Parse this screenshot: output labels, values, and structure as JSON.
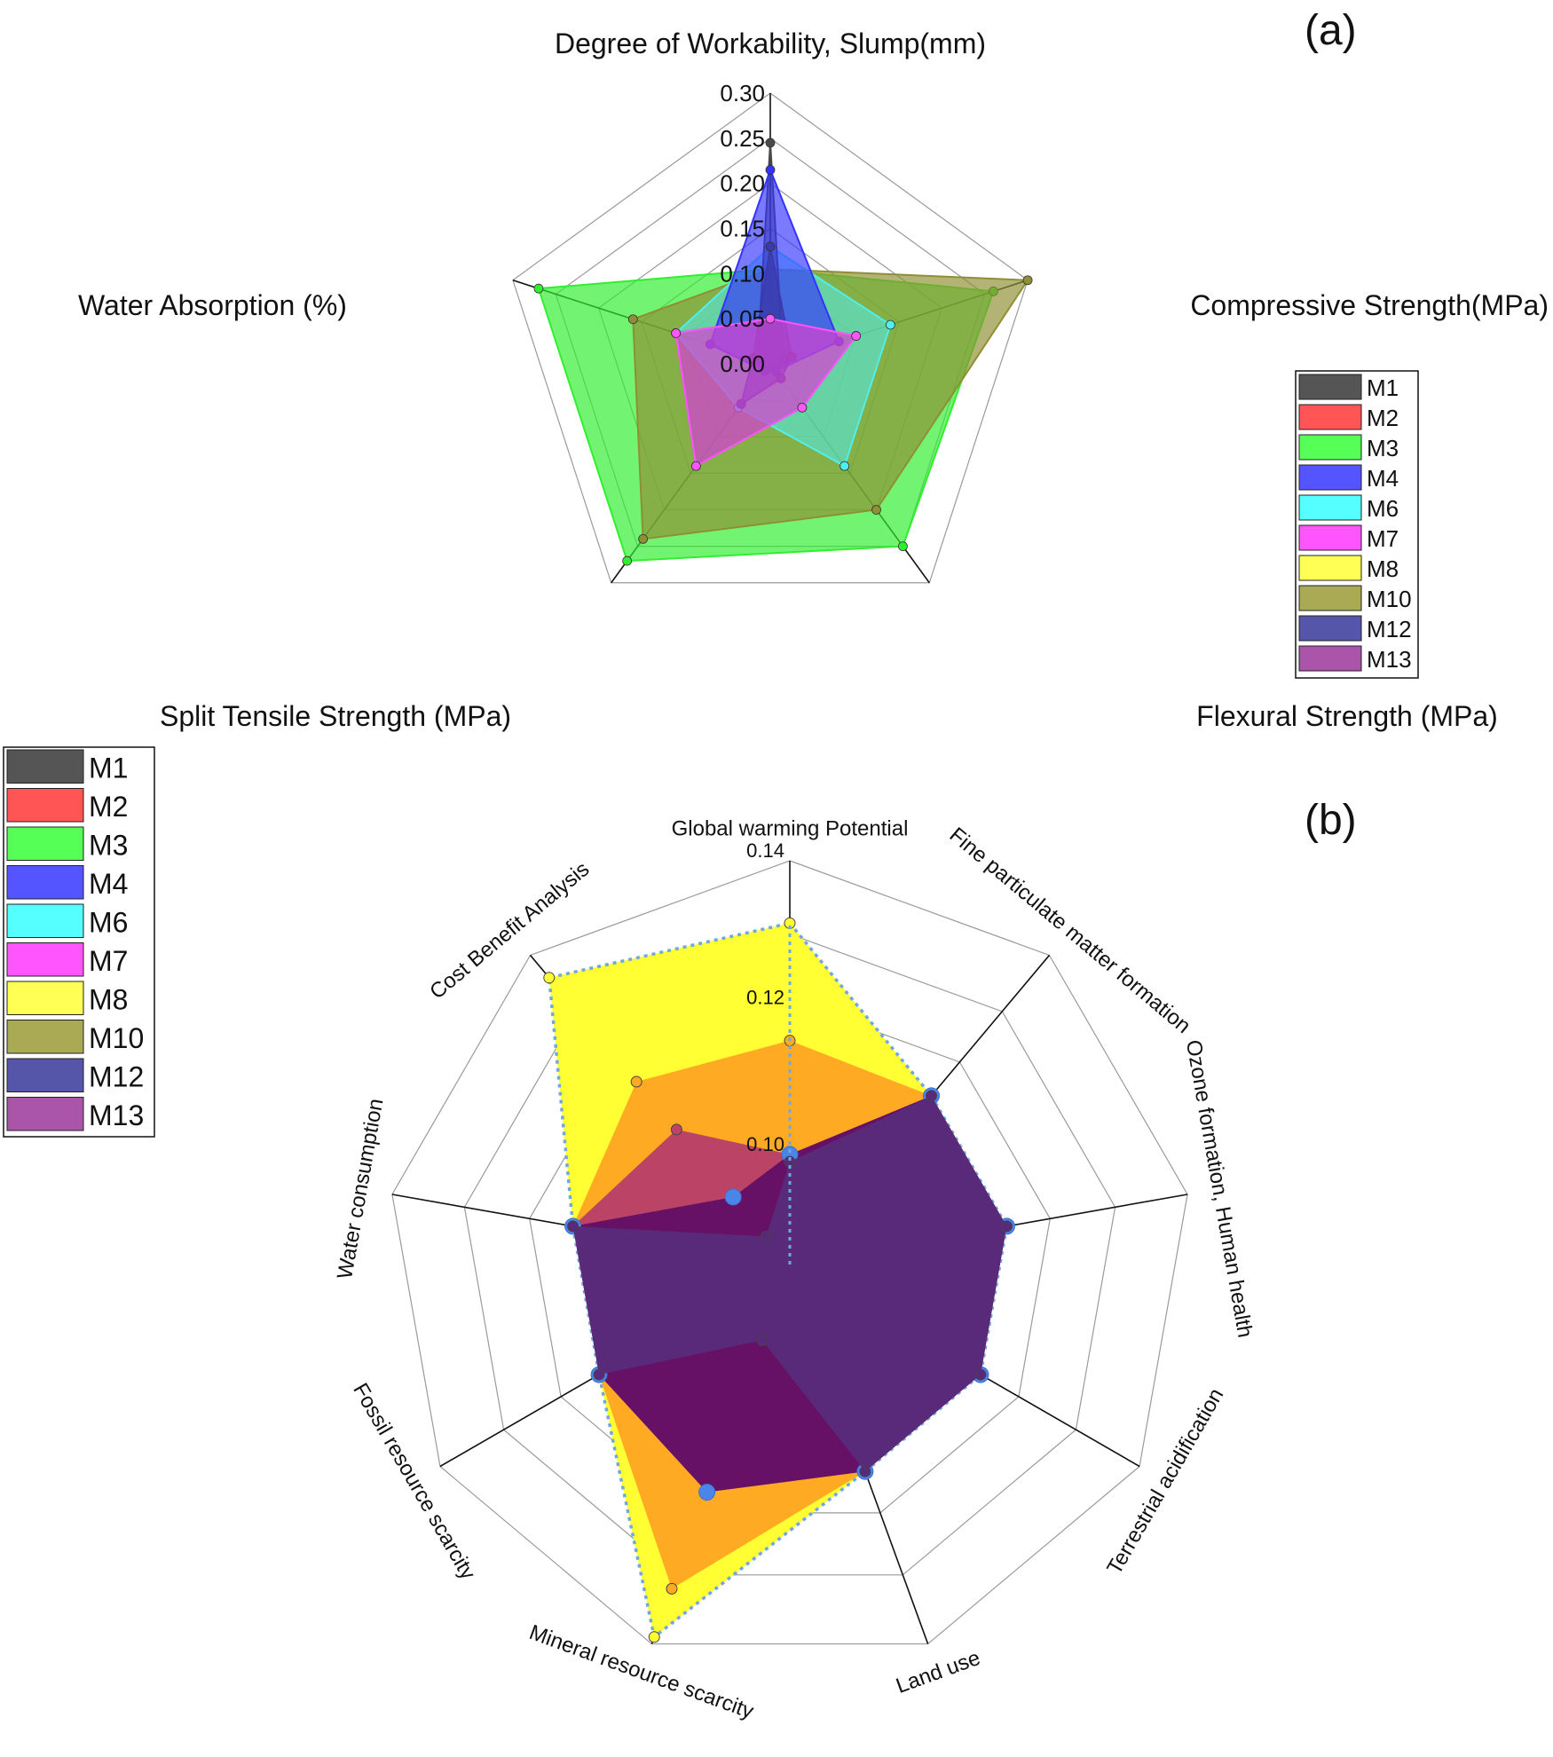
{
  "chart_data": [
    {
      "panel_label": "(a)",
      "type": "radar",
      "axes": [
        "Degree of Workability, Slump(mm)",
        "Compressive Strength(MPa)",
        "Flexural Strength (MPa)",
        "Split Tensile Strength (MPa)",
        "Water Absorption (%)"
      ],
      "rlim": [
        0,
        0.3
      ],
      "ticks": [
        "0.30",
        "0.25",
        "0.20",
        "0.15",
        "0.10",
        "0.05",
        "0.00"
      ],
      "tick_values": [
        0.3,
        0.25,
        0.2,
        0.15,
        0.1,
        0.05,
        0.0
      ],
      "rings": [
        0.05,
        0.1,
        0.15,
        0.2,
        0.25,
        0.3
      ],
      "legend_position": "right",
      "legend": [
        "M1",
        "M2",
        "M3",
        "M4",
        "M6",
        "M7",
        "M8",
        "M10",
        "M12",
        "M13"
      ],
      "series": [
        {
          "name": "M3",
          "color": "#2fef2f",
          "opacity": 0.68,
          "values": [
            0.105,
            0.26,
            0.25,
            0.27,
            0.27
          ]
        },
        {
          "name": "M10",
          "color": "#8f8f33",
          "opacity": 0.68,
          "values": [
            0.105,
            0.3,
            0.2,
            0.24,
            0.16
          ]
        },
        {
          "name": "M6",
          "color": "#4fefef",
          "opacity": 0.55,
          "values": [
            0.13,
            0.14,
            0.14,
            0.06,
            0.11
          ]
        },
        {
          "name": "M1",
          "color": "#4a4a4a",
          "opacity": 0.6,
          "values": [
            0.245,
            0.015,
            0.01,
            0.01,
            0.015
          ]
        },
        {
          "name": "M4",
          "color": "#3333ff",
          "opacity": 0.65,
          "values": [
            0.215,
            0.08,
            0.01,
            0.01,
            0.07
          ]
        },
        {
          "name": "M12",
          "color": "#3a3aaa",
          "opacity": 0.7,
          "values": [
            0.13,
            0.025,
            0.02,
            0.055,
            0.02
          ]
        },
        {
          "name": "M13",
          "color": "#aa33aa",
          "opacity": 0.6,
          "values": [
            0.05,
            0.1,
            0.06,
            0.14,
            0.11
          ]
        },
        {
          "name": "M7",
          "color": "#ff55ff",
          "opacity": 0.35,
          "values": [
            0.05,
            0.1,
            0.06,
            0.14,
            0.11
          ]
        }
      ]
    },
    {
      "panel_label": "(b)",
      "type": "radar",
      "axes": [
        "Global warming Potential",
        "Fine particulate matter formation",
        "Ozone formation, Human health",
        "Terrestrial acidification",
        "Land use",
        "Mineral resource scarcity",
        "Fossil resource scarcity",
        "Water consumption",
        "Cost Benefit Analysis"
      ],
      "rlim": [
        0.085,
        0.14
      ],
      "ticks": [
        "0.14",
        "0.12",
        "0.10"
      ],
      "tick_values": [
        0.14,
        0.12,
        0.1
      ],
      "rings": [
        0.094,
        0.103,
        0.112,
        0.121,
        0.13,
        0.14
      ],
      "legend_position": "left",
      "legend": [
        "M1",
        "M2",
        "M3",
        "M4",
        "M6",
        "M7",
        "M8",
        "M10",
        "M12",
        "M13"
      ],
      "series": [
        {
          "name": "M8",
          "color": "#ffff33",
          "opacity": 1.0,
          "border": "#6fa8dc",
          "values": [
            0.1315,
            0.115,
            0.115,
            0.115,
            0.115,
            0.139,
            0.115,
            0.115,
            0.136
          ]
        },
        {
          "name": "M10",
          "color": "#ffaa22",
          "opacity": 1.0,
          "values": [
            0.1155,
            0.115,
            0.115,
            0.115,
            0.115,
            0.132,
            0.115,
            0.115,
            0.1175
          ]
        },
        {
          "name": "M2",
          "color": "#bb4466",
          "opacity": 1.0,
          "values": [
            0.1,
            0.115,
            0.115,
            0.115,
            0.115,
            0.118,
            0.115,
            0.115,
            0.109
          ]
        },
        {
          "name": "M12",
          "color": "#661166",
          "opacity": 1.0,
          "values": [
            0.1,
            0.115,
            0.115,
            0.115,
            0.115,
            0.118,
            0.115,
            0.115,
            0.097
          ]
        },
        {
          "name": "M13",
          "color": "#5a2a7a",
          "opacity": 1.0,
          "values": [
            0.099,
            0.115,
            0.115,
            0.115,
            0.115,
            0.096,
            0.115,
            0.115,
            0.09
          ]
        }
      ]
    }
  ]
}
